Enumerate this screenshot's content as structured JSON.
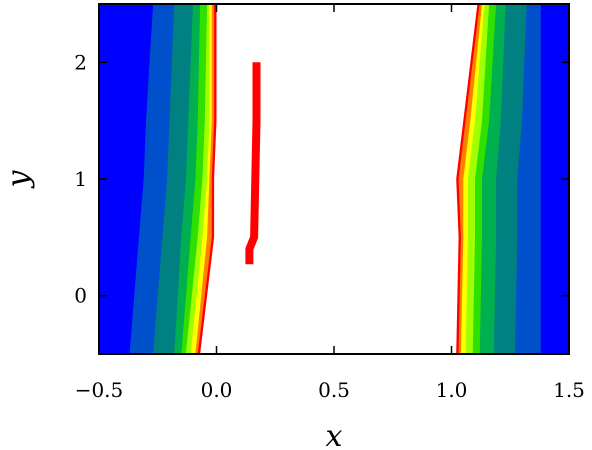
{
  "chart_data": {
    "type": "heatmap",
    "title": "",
    "xlabel": "x",
    "ylabel": "y",
    "xlim": [
      -0.5,
      1.5
    ],
    "ylim": [
      -0.5,
      2.5
    ],
    "xticks": [
      -0.5,
      0.0,
      0.5,
      1.0,
      1.5
    ],
    "xtick_labels": [
      "−0.5",
      "0.0",
      "0.5",
      "1.0",
      "1.5"
    ],
    "yticks": [
      0,
      1,
      2
    ],
    "ytick_labels": [
      "0",
      "1",
      "2"
    ],
    "grid": false,
    "legend": "none",
    "colors": {
      "level_0": "#0000ff",
      "level_1": "#0050cc",
      "level_2": "#008080",
      "level_3": "#00b050",
      "level_4": "#30e000",
      "level_5": "#a0ff00",
      "level_6": "#ffff00",
      "level_7": "#ff8000",
      "level_8": "#ff0000",
      "interior": "#ffffff"
    },
    "left_region_boundaries": [
      {
        "level": 1,
        "y": [
          -0.5,
          0.5,
          1.0,
          1.5,
          2.5
        ],
        "x": [
          -0.37,
          -0.33,
          -0.31,
          -0.3,
          -0.27
        ]
      },
      {
        "level": 2,
        "y": [
          -0.5,
          0.5,
          1.0,
          1.5,
          2.5
        ],
        "x": [
          -0.27,
          -0.23,
          -0.21,
          -0.2,
          -0.18
        ]
      },
      {
        "level": 3,
        "y": [
          -0.5,
          0.5,
          1.0,
          1.5,
          2.5
        ],
        "x": [
          -0.18,
          -0.15,
          -0.13,
          -0.12,
          -0.1
        ]
      },
      {
        "level": 4,
        "y": [
          -0.5,
          0.5,
          1.0,
          1.5,
          2.5
        ],
        "x": [
          -0.15,
          -0.11,
          -0.09,
          -0.08,
          -0.07
        ]
      },
      {
        "level": 5,
        "y": [
          -0.5,
          0.5,
          1.0,
          1.5,
          2.5
        ],
        "x": [
          -0.13,
          -0.08,
          -0.06,
          -0.05,
          -0.04
        ]
      },
      {
        "level": 6,
        "y": [
          -0.5,
          0.5,
          1.0,
          1.5,
          2.5
        ],
        "x": [
          -0.11,
          -0.06,
          -0.04,
          -0.03,
          -0.03
        ]
      },
      {
        "level": 7,
        "y": [
          -0.5,
          0.5,
          1.0,
          1.5,
          2.5
        ],
        "x": [
          -0.09,
          -0.04,
          -0.03,
          -0.02,
          -0.02
        ]
      },
      {
        "level": 8,
        "y": [
          -0.5,
          0.5,
          1.0,
          1.5,
          2.5
        ],
        "x": [
          -0.08,
          -0.02,
          -0.02,
          -0.01,
          -0.01
        ]
      },
      {
        "level": 9,
        "y": [
          -0.5,
          0.5,
          1.0,
          1.5,
          2.5
        ],
        "x": [
          -0.07,
          -0.01,
          -0.01,
          0.0,
          0.0
        ]
      }
    ],
    "right_region_boundaries": [
      {
        "level": 9,
        "y": [
          -0.5,
          0.5,
          1.0,
          1.5,
          2.5
        ],
        "x": [
          1.02,
          1.03,
          1.02,
          1.05,
          1.11
        ]
      },
      {
        "level": 8,
        "y": [
          -0.5,
          0.5,
          1.0,
          1.5,
          2.5
        ],
        "x": [
          1.03,
          1.04,
          1.03,
          1.06,
          1.12
        ]
      },
      {
        "level": 7,
        "y": [
          -0.5,
          0.5,
          1.0,
          1.5,
          2.5
        ],
        "x": [
          1.04,
          1.05,
          1.05,
          1.08,
          1.13
        ]
      },
      {
        "level": 6,
        "y": [
          -0.5,
          0.5,
          1.0,
          1.5,
          2.5
        ],
        "x": [
          1.06,
          1.07,
          1.07,
          1.1,
          1.14
        ]
      },
      {
        "level": 5,
        "y": [
          -0.5,
          0.5,
          1.0,
          1.5,
          2.5
        ],
        "x": [
          1.09,
          1.1,
          1.1,
          1.13,
          1.16
        ]
      },
      {
        "level": 4,
        "y": [
          -0.5,
          0.5,
          1.0,
          1.5,
          2.5
        ],
        "x": [
          1.12,
          1.13,
          1.13,
          1.16,
          1.19
        ]
      },
      {
        "level": 3,
        "y": [
          -0.5,
          0.5,
          1.0,
          1.5,
          2.5
        ],
        "x": [
          1.18,
          1.19,
          1.19,
          1.21,
          1.23
        ]
      },
      {
        "level": 2,
        "y": [
          -0.5,
          0.5,
          1.0,
          1.5,
          2.5
        ],
        "x": [
          1.27,
          1.28,
          1.28,
          1.3,
          1.32
        ]
      },
      {
        "level": 1,
        "y": [
          -0.5,
          0.5,
          1.0,
          1.5,
          2.5
        ],
        "x": [
          1.38,
          1.38,
          1.38,
          1.38,
          1.38
        ]
      }
    ],
    "interior_curve": {
      "color": "#ff0000",
      "points": [
        {
          "x": 0.14,
          "y": 0.27
        },
        {
          "x": 0.14,
          "y": 0.4
        },
        {
          "x": 0.16,
          "y": 0.5
        },
        {
          "x": 0.165,
          "y": 1.0
        },
        {
          "x": 0.17,
          "y": 1.5
        },
        {
          "x": 0.17,
          "y": 2.0
        }
      ]
    }
  }
}
